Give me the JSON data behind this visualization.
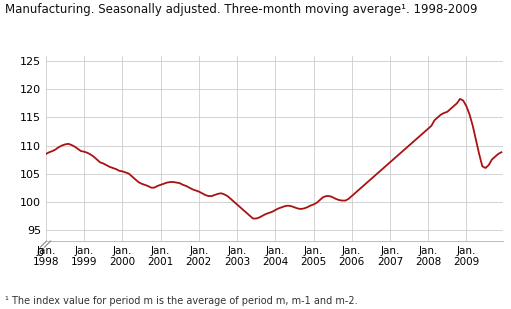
{
  "title": "Manufacturing. Seasonally adjusted. Three-month moving average¹. 1998-2009",
  "footnote": "¹ The index value for period m is the average of period m, m-1 and m-2.",
  "line_color": "#aa1111",
  "background_color": "#ffffff",
  "grid_color": "#cccccc",
  "ylim": [
    93,
    126
  ],
  "yticks_shown": [
    95,
    100,
    105,
    110,
    115,
    120,
    125
  ],
  "x_start_year": 1998,
  "x_end_year": 2009,
  "xtick_years": [
    1998,
    1999,
    2000,
    2001,
    2002,
    2003,
    2004,
    2005,
    2006,
    2007,
    2008,
    2009
  ],
  "values": [
    108.5,
    108.8,
    109.0,
    109.3,
    109.7,
    110.0,
    110.2,
    110.3,
    110.1,
    109.8,
    109.4,
    109.0,
    108.9,
    108.7,
    108.4,
    108.0,
    107.5,
    107.0,
    106.8,
    106.5,
    106.2,
    106.0,
    105.8,
    105.5,
    105.4,
    105.2,
    105.0,
    104.5,
    104.0,
    103.5,
    103.2,
    103.0,
    102.8,
    102.5,
    102.5,
    102.8,
    103.0,
    103.2,
    103.4,
    103.5,
    103.5,
    103.4,
    103.3,
    103.0,
    102.8,
    102.5,
    102.2,
    102.0,
    101.8,
    101.5,
    101.2,
    101.0,
    101.0,
    101.2,
    101.4,
    101.5,
    101.3,
    101.0,
    100.5,
    100.0,
    99.5,
    99.0,
    98.5,
    98.0,
    97.5,
    97.0,
    97.0,
    97.2,
    97.5,
    97.8,
    98.0,
    98.2,
    98.5,
    98.8,
    99.0,
    99.2,
    99.3,
    99.2,
    99.0,
    98.8,
    98.7,
    98.8,
    99.0,
    99.3,
    99.5,
    99.8,
    100.3,
    100.8,
    101.0,
    101.0,
    100.8,
    100.5,
    100.3,
    100.2,
    100.2,
    100.5,
    101.0,
    101.5,
    102.0,
    102.5,
    103.0,
    103.5,
    104.0,
    104.5,
    105.0,
    105.5,
    106.0,
    106.5,
    107.0,
    107.5,
    108.0,
    108.5,
    109.0,
    109.5,
    110.0,
    110.5,
    111.0,
    111.5,
    112.0,
    112.5,
    113.0,
    113.5,
    114.5,
    115.0,
    115.5,
    115.8,
    116.0,
    116.5,
    117.0,
    117.5,
    118.3,
    118.0,
    117.0,
    115.5,
    113.5,
    111.0,
    108.5,
    106.3,
    106.0,
    106.5,
    107.5,
    108.0,
    108.5,
    108.8
  ]
}
